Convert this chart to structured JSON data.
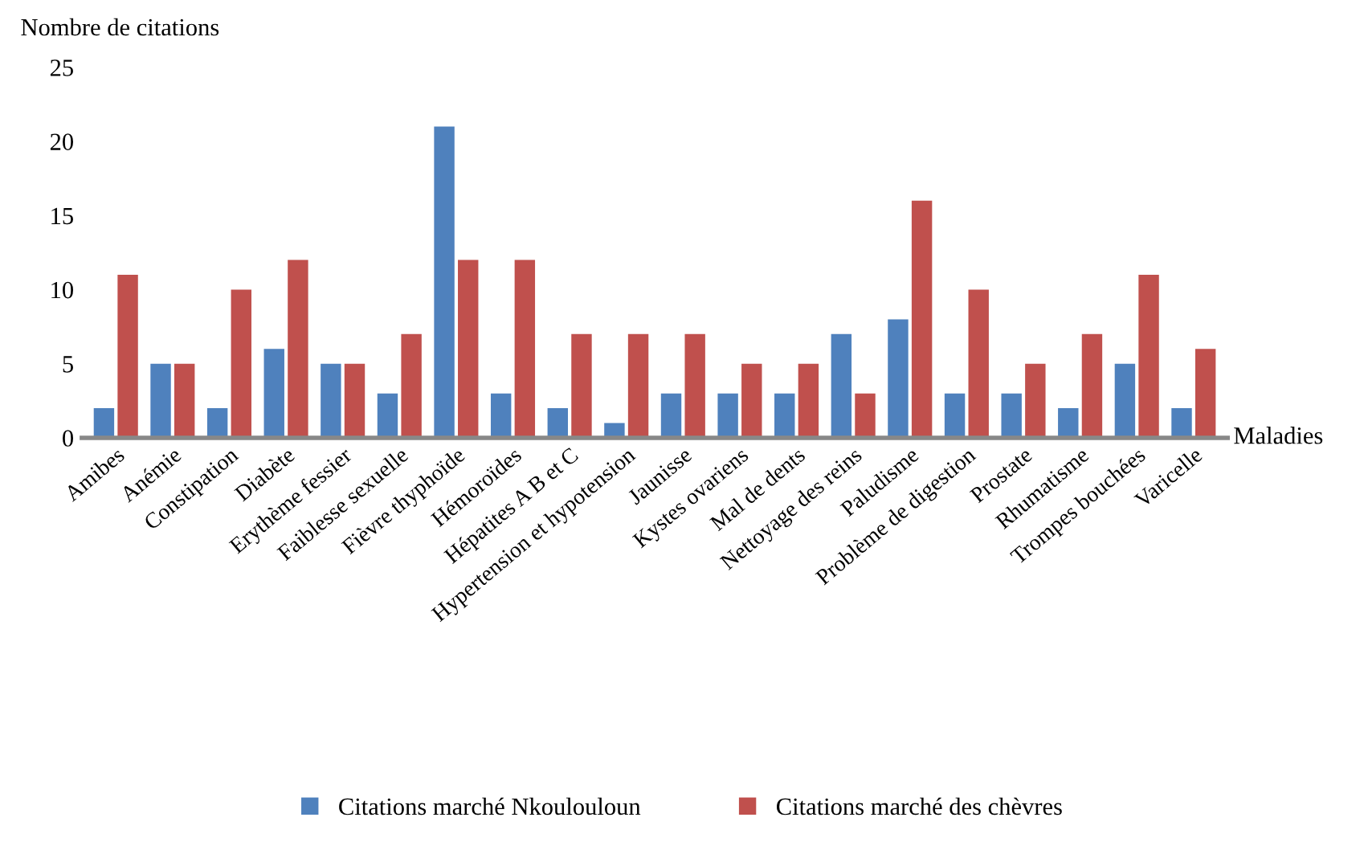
{
  "chart_data": {
    "type": "bar",
    "xlabel": "Maladies",
    "ylabel": "Nombre de citations",
    "categories": [
      "Amibes",
      "Anémie",
      "Constipation",
      "Diabète",
      "Erythème fessier",
      "Faiblesse sexuelle",
      "Fièvre thyphoïde",
      "Hémoroïdes",
      "Hépatites A B et C",
      "Hypertension et hypotension",
      "Jaunisse",
      "Kystes ovariens",
      "Mal de dents",
      "Nettoyage des reins",
      "Paludisme",
      "Problème de digestion",
      "Prostate",
      "Rhumatisme",
      "Trompes bouchées",
      "Varicelle"
    ],
    "series": [
      {
        "name": "Citations marché Nkoulouloun",
        "color": "#4f81bd",
        "values": [
          2,
          5,
          2,
          6,
          5,
          3,
          21,
          3,
          2,
          1,
          3,
          3,
          3,
          7,
          8,
          3,
          3,
          2,
          5,
          2
        ]
      },
      {
        "name": "Citations marché des chèvres",
        "color": "#c0504d",
        "values": [
          11,
          5,
          10,
          12,
          5,
          7,
          12,
          12,
          7,
          7,
          7,
          5,
          5,
          3,
          16,
          10,
          5,
          7,
          11,
          6
        ]
      }
    ],
    "ylim": [
      0,
      25
    ],
    "yticks": [
      0,
      5,
      10,
      15,
      20,
      25
    ],
    "grid": false,
    "legend": "bottom"
  }
}
